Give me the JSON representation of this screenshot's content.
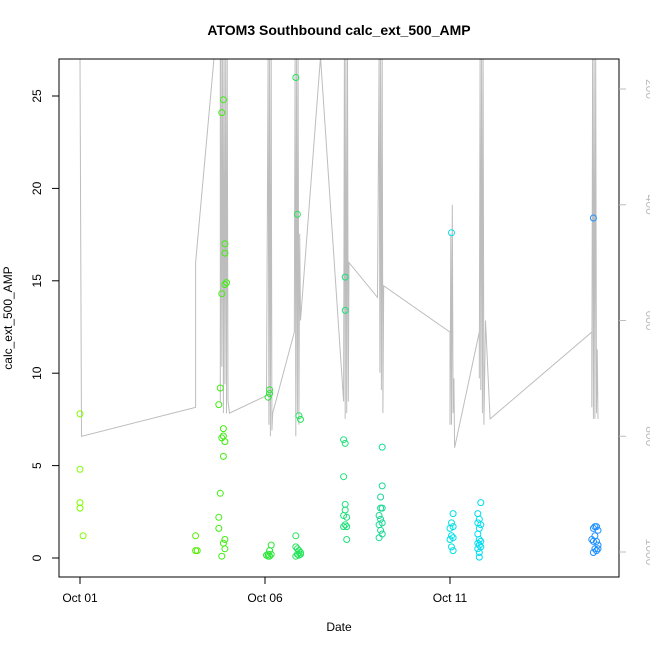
{
  "chart_data": {
    "type": "scatter",
    "title": "ATOM3 Southbound calc_ext_500_AMP",
    "xlabel": "Date",
    "ylabel": "calc_ext_500_AMP",
    "xlim": [
      "2023-10-01",
      "2023-10-15"
    ],
    "ylim": [
      0,
      27
    ],
    "y2lim": [
      1030,
      145
    ],
    "x_ticks": [
      {
        "date": "2023-10-01",
        "label": "Oct 01"
      },
      {
        "date": "2023-10-06",
        "label": "Oct 06"
      },
      {
        "date": "2023-10-11",
        "label": "Oct 11"
      }
    ],
    "y_ticks": [
      0,
      5,
      10,
      15,
      20,
      25
    ],
    "y2_ticks": [
      200,
      400,
      600,
      800,
      1000
    ],
    "grid": false,
    "legend": "none",
    "colors": {
      "trace": "#bdbdbd",
      "axis": "#000000"
    },
    "points": [
      {
        "x": "2023-10-01T00:00",
        "y": 7.8,
        "color": "#7cfc00"
      },
      {
        "x": "2023-10-01T00:00",
        "y": 4.8,
        "color": "#7cfc00"
      },
      {
        "x": "2023-10-01T00:00",
        "y": 3.0,
        "color": "#7cfc00"
      },
      {
        "x": "2023-10-01T00:00",
        "y": 2.7,
        "color": "#7cfc00"
      },
      {
        "x": "2023-10-01T02:00",
        "y": 1.2,
        "color": "#7cfc00"
      },
      {
        "x": "2023-10-04T03:00",
        "y": 1.2,
        "color": "#55f000"
      },
      {
        "x": "2023-10-04T03:00",
        "y": 0.4,
        "color": "#55f000"
      },
      {
        "x": "2023-10-04T04:00",
        "y": 0.4,
        "color": "#55f000"
      },
      {
        "x": "2023-10-04T19:00",
        "y": 9.2,
        "color": "#40ee10"
      },
      {
        "x": "2023-10-04T18:00",
        "y": 8.3,
        "color": "#40ee10"
      },
      {
        "x": "2023-10-04T21:00",
        "y": 24.8,
        "color": "#40ee10"
      },
      {
        "x": "2023-10-04T20:00",
        "y": 24.1,
        "color": "#40ee10"
      },
      {
        "x": "2023-10-04T22:00",
        "y": 17.0,
        "color": "#40ee10"
      },
      {
        "x": "2023-10-04T22:00",
        "y": 16.5,
        "color": "#40ee10"
      },
      {
        "x": "2023-10-04T23:00",
        "y": 14.9,
        "color": "#40ee10"
      },
      {
        "x": "2023-10-04T22:00",
        "y": 14.8,
        "color": "#40ee10"
      },
      {
        "x": "2023-10-04T20:00",
        "y": 14.3,
        "color": "#40ee10"
      },
      {
        "x": "2023-10-04T21:00",
        "y": 7.0,
        "color": "#40ee10"
      },
      {
        "x": "2023-10-04T20:00",
        "y": 6.5,
        "color": "#40ee10"
      },
      {
        "x": "2023-10-04T22:00",
        "y": 6.3,
        "color": "#40ee10"
      },
      {
        "x": "2023-10-04T21:00",
        "y": 6.6,
        "color": "#40ee10"
      },
      {
        "x": "2023-10-04T21:00",
        "y": 5.5,
        "color": "#40ee10"
      },
      {
        "x": "2023-10-04T19:00",
        "y": 3.5,
        "color": "#40ee10"
      },
      {
        "x": "2023-10-04T18:00",
        "y": 2.2,
        "color": "#40ee10"
      },
      {
        "x": "2023-10-04T18:00",
        "y": 1.6,
        "color": "#40ee10"
      },
      {
        "x": "2023-10-04T22:00",
        "y": 1.0,
        "color": "#40ee10"
      },
      {
        "x": "2023-10-04T21:00",
        "y": 0.8,
        "color": "#40ee10"
      },
      {
        "x": "2023-10-04T22:00",
        "y": 0.5,
        "color": "#40ee10"
      },
      {
        "x": "2023-10-04T20:00",
        "y": 0.1,
        "color": "#40ee10"
      },
      {
        "x": "2023-10-06T03:00",
        "y": 9.1,
        "color": "#2ee63a"
      },
      {
        "x": "2023-10-06T03:00",
        "y": 8.9,
        "color": "#2ee63a"
      },
      {
        "x": "2023-10-06T02:00",
        "y": 8.7,
        "color": "#2ee63a"
      },
      {
        "x": "2023-10-06T04:00",
        "y": 0.7,
        "color": "#2ee63a"
      },
      {
        "x": "2023-10-06T03:00",
        "y": 0.4,
        "color": "#2ee63a"
      },
      {
        "x": "2023-10-06T02:00",
        "y": 0.2,
        "color": "#2ee63a"
      },
      {
        "x": "2023-10-06T01:00",
        "y": 0.15,
        "color": "#2ee63a"
      },
      {
        "x": "2023-10-06T03:00",
        "y": 0.1,
        "color": "#2ee63a"
      },
      {
        "x": "2023-10-06T02:00",
        "y": 0.1,
        "color": "#2ee63a"
      },
      {
        "x": "2023-10-06T04:00",
        "y": 0.2,
        "color": "#2ee63a"
      },
      {
        "x": "2023-10-06T20:00",
        "y": 26.0,
        "color": "#22e45a"
      },
      {
        "x": "2023-10-06T21:00",
        "y": 18.6,
        "color": "#22e45a"
      },
      {
        "x": "2023-10-06T22:00",
        "y": 7.7,
        "color": "#22e45a"
      },
      {
        "x": "2023-10-06T23:00",
        "y": 7.5,
        "color": "#22e45a"
      },
      {
        "x": "2023-10-06T20:00",
        "y": 1.2,
        "color": "#22e45a"
      },
      {
        "x": "2023-10-06T20:00",
        "y": 0.6,
        "color": "#22e45a"
      },
      {
        "x": "2023-10-06T21:00",
        "y": 0.5,
        "color": "#22e45a"
      },
      {
        "x": "2023-10-06T22:00",
        "y": 0.4,
        "color": "#22e45a"
      },
      {
        "x": "2023-10-06T23:00",
        "y": 0.3,
        "color": "#22e45a"
      },
      {
        "x": "2023-10-06T21:00",
        "y": 0.2,
        "color": "#22e45a"
      },
      {
        "x": "2023-10-06T22:00",
        "y": 0.15,
        "color": "#22e45a"
      },
      {
        "x": "2023-10-06T20:00",
        "y": 0.1,
        "color": "#22e45a"
      },
      {
        "x": "2023-10-06T23:00",
        "y": 0.2,
        "color": "#22e45a"
      },
      {
        "x": "2023-10-08T04:00",
        "y": 15.2,
        "color": "#1de07a"
      },
      {
        "x": "2023-10-08T04:00",
        "y": 13.4,
        "color": "#1de07a"
      },
      {
        "x": "2023-10-08T03:00",
        "y": 6.4,
        "color": "#1de07a"
      },
      {
        "x": "2023-10-08T04:00",
        "y": 6.2,
        "color": "#1de07a"
      },
      {
        "x": "2023-10-08T03:00",
        "y": 4.4,
        "color": "#1de07a"
      },
      {
        "x": "2023-10-08T04:00",
        "y": 2.9,
        "color": "#1de07a"
      },
      {
        "x": "2023-10-08T04:00",
        "y": 2.6,
        "color": "#1de07a"
      },
      {
        "x": "2023-10-08T03:00",
        "y": 2.3,
        "color": "#1de07a"
      },
      {
        "x": "2023-10-08T05:00",
        "y": 2.2,
        "color": "#1de07a"
      },
      {
        "x": "2023-10-08T04:00",
        "y": 1.8,
        "color": "#1de07a"
      },
      {
        "x": "2023-10-08T03:00",
        "y": 1.7,
        "color": "#1de07a"
      },
      {
        "x": "2023-10-08T05:00",
        "y": 1.7,
        "color": "#1de07a"
      },
      {
        "x": "2023-10-08T05:00",
        "y": 1.0,
        "color": "#1de07a"
      },
      {
        "x": "2023-10-09T04:00",
        "y": 6.0,
        "color": "#1ad894"
      },
      {
        "x": "2023-10-09T04:00",
        "y": 3.9,
        "color": "#1ad894"
      },
      {
        "x": "2023-10-09T03:00",
        "y": 3.3,
        "color": "#1ad894"
      },
      {
        "x": "2023-10-09T03:00",
        "y": 2.7,
        "color": "#1ad894"
      },
      {
        "x": "2023-10-09T04:00",
        "y": 2.7,
        "color": "#1ad894"
      },
      {
        "x": "2023-10-09T02:00",
        "y": 2.3,
        "color": "#1ad894"
      },
      {
        "x": "2023-10-09T03:00",
        "y": 2.1,
        "color": "#1ad894"
      },
      {
        "x": "2023-10-09T04:00",
        "y": 1.9,
        "color": "#1ad894"
      },
      {
        "x": "2023-10-09T02:00",
        "y": 1.8,
        "color": "#1ad894"
      },
      {
        "x": "2023-10-09T03:00",
        "y": 1.5,
        "color": "#1ad894"
      },
      {
        "x": "2023-10-09T04:00",
        "y": 1.3,
        "color": "#1ad894"
      },
      {
        "x": "2023-10-09T02:00",
        "y": 1.1,
        "color": "#1ad894"
      },
      {
        "x": "2023-10-11T01:00",
        "y": 17.6,
        "color": "#00e0e8"
      },
      {
        "x": "2023-10-11T02:00",
        "y": 2.4,
        "color": "#00e0e8"
      },
      {
        "x": "2023-10-11T01:00",
        "y": 1.9,
        "color": "#00e0e8"
      },
      {
        "x": "2023-10-11T02:00",
        "y": 1.7,
        "color": "#00e0e8"
      },
      {
        "x": "2023-10-11T00:00",
        "y": 1.6,
        "color": "#00e0e8"
      },
      {
        "x": "2023-10-11T01:00",
        "y": 1.2,
        "color": "#00e0e8"
      },
      {
        "x": "2023-10-11T02:00",
        "y": 1.1,
        "color": "#00e0e8"
      },
      {
        "x": "2023-10-11T00:00",
        "y": 1.0,
        "color": "#00e0e8"
      },
      {
        "x": "2023-10-11T01:00",
        "y": 0.6,
        "color": "#00e0e8"
      },
      {
        "x": "2023-10-11T02:00",
        "y": 0.4,
        "color": "#00e0e8"
      },
      {
        "x": "2023-10-11T20:00",
        "y": 3.0,
        "color": "#00dcf2"
      },
      {
        "x": "2023-10-11T18:00",
        "y": 2.4,
        "color": "#00dcf2"
      },
      {
        "x": "2023-10-11T19:00",
        "y": 2.1,
        "color": "#00dcf2"
      },
      {
        "x": "2023-10-11T18:00",
        "y": 1.9,
        "color": "#00dcf2"
      },
      {
        "x": "2023-10-11T20:00",
        "y": 1.8,
        "color": "#00dcf2"
      },
      {
        "x": "2023-10-11T19:00",
        "y": 1.6,
        "color": "#00dcf2"
      },
      {
        "x": "2023-10-11T18:00",
        "y": 1.3,
        "color": "#00dcf2"
      },
      {
        "x": "2023-10-11T19:00",
        "y": 1.0,
        "color": "#00dcf2"
      },
      {
        "x": "2023-10-11T20:00",
        "y": 0.9,
        "color": "#00dcf2"
      },
      {
        "x": "2023-10-11T18:00",
        "y": 0.8,
        "color": "#00dcf2"
      },
      {
        "x": "2023-10-11T19:00",
        "y": 0.7,
        "color": "#00dcf2"
      },
      {
        "x": "2023-10-11T20:00",
        "y": 0.6,
        "color": "#00dcf2"
      },
      {
        "x": "2023-10-11T18:00",
        "y": 0.5,
        "color": "#00dcf2"
      },
      {
        "x": "2023-10-11T19:00",
        "y": 0.3,
        "color": "#00dcf2"
      },
      {
        "x": "2023-10-11T19:00",
        "y": 0.05,
        "color": "#00dcf2"
      },
      {
        "x": "2023-10-14T21:00",
        "y": 18.4,
        "color": "#1e90ff"
      },
      {
        "x": "2023-10-14T22:00",
        "y": 1.7,
        "color": "#1e90ff"
      },
      {
        "x": "2023-10-14T23:00",
        "y": 1.7,
        "color": "#1e90ff"
      },
      {
        "x": "2023-10-14T21:00",
        "y": 1.6,
        "color": "#1e90ff"
      },
      {
        "x": "2023-10-15T00:00",
        "y": 1.5,
        "color": "#1e90ff"
      },
      {
        "x": "2023-10-14T22:00",
        "y": 1.2,
        "color": "#1e90ff"
      },
      {
        "x": "2023-10-14T20:00",
        "y": 1.0,
        "color": "#1e90ff"
      },
      {
        "x": "2023-10-14T21:00",
        "y": 0.9,
        "color": "#1e90ff"
      },
      {
        "x": "2023-10-14T23:00",
        "y": 0.9,
        "color": "#1e90ff"
      },
      {
        "x": "2023-10-15T00:00",
        "y": 0.7,
        "color": "#1e90ff"
      },
      {
        "x": "2023-10-14T22:00",
        "y": 0.5,
        "color": "#1e90ff"
      },
      {
        "x": "2023-10-14T23:00",
        "y": 0.4,
        "color": "#1e90ff"
      },
      {
        "x": "2023-10-14T21:00",
        "y": 0.3,
        "color": "#1e90ff"
      },
      {
        "x": "2023-10-15T00:00",
        "y": 0.5,
        "color": "#1e90ff"
      }
    ],
    "trace_y2": [
      [
        "2023-10-01T00:00",
        145
      ],
      [
        "2023-10-01T01:00",
        800
      ],
      [
        "2023-10-04T03:00",
        750
      ],
      [
        "2023-10-04T03:00",
        500
      ],
      [
        "2023-10-04T15:00",
        145
      ],
      [
        "2023-10-04T19:00",
        145
      ],
      [
        "2023-10-04T19:00",
        740
      ],
      [
        "2023-10-04T19:30",
        145
      ],
      [
        "2023-10-04T20:00",
        680
      ],
      [
        "2023-10-04T20:30",
        145
      ],
      [
        "2023-10-04T21:00",
        760
      ],
      [
        "2023-10-04T21:30",
        145
      ],
      [
        "2023-10-04T22:00",
        710
      ],
      [
        "2023-10-04T22:30",
        145
      ],
      [
        "2023-10-04T23:00",
        760
      ],
      [
        "2023-10-04T23:30",
        145
      ],
      [
        "2023-10-05T00:00",
        740
      ],
      [
        "2023-10-05T01:00",
        760
      ],
      [
        "2023-10-06T01:00",
        730
      ],
      [
        "2023-10-06T02:00",
        145
      ],
      [
        "2023-10-06T02:30",
        780
      ],
      [
        "2023-10-06T03:00",
        145
      ],
      [
        "2023-10-06T03:30",
        800
      ],
      [
        "2023-10-06T04:00",
        145
      ],
      [
        "2023-10-06T04:30",
        790
      ],
      [
        "2023-10-06T05:00",
        760
      ],
      [
        "2023-10-06T19:00",
        620
      ],
      [
        "2023-10-06T19:30",
        145
      ],
      [
        "2023-10-06T20:00",
        800
      ],
      [
        "2023-10-06T20:30",
        145
      ],
      [
        "2023-10-06T21:00",
        760
      ],
      [
        "2023-10-06T21:30",
        145
      ],
      [
        "2023-10-06T22:00",
        780
      ],
      [
        "2023-10-06T22:30",
        450
      ],
      [
        "2023-10-06T23:00",
        600
      ],
      [
        "2023-10-07T12:00",
        145
      ],
      [
        "2023-10-08T03:00",
        740
      ],
      [
        "2023-10-08T03:30",
        145
      ],
      [
        "2023-10-08T04:00",
        770
      ],
      [
        "2023-10-08T04:30",
        145
      ],
      [
        "2023-10-08T05:00",
        760
      ],
      [
        "2023-10-08T05:30",
        145
      ],
      [
        "2023-10-08T06:00",
        740
      ],
      [
        "2023-10-08T06:30",
        500
      ],
      [
        "2023-10-09T01:00",
        560
      ],
      [
        "2023-10-09T02:00",
        145
      ],
      [
        "2023-10-09T02:30",
        690
      ],
      [
        "2023-10-09T03:00",
        145
      ],
      [
        "2023-10-09T03:30",
        720
      ],
      [
        "2023-10-09T04:00",
        145
      ],
      [
        "2023-10-09T04:30",
        760
      ],
      [
        "2023-10-09T05:00",
        540
      ],
      [
        "2023-10-11T00:00",
        620
      ],
      [
        "2023-10-11T00:00",
        780
      ],
      [
        "2023-10-11T00:30",
        450
      ],
      [
        "2023-10-11T01:00",
        780
      ],
      [
        "2023-10-11T01:30",
        400
      ],
      [
        "2023-10-11T02:00",
        760
      ],
      [
        "2023-10-11T02:30",
        700
      ],
      [
        "2023-10-11T03:00",
        820
      ],
      [
        "2023-10-11T19:00",
        620
      ],
      [
        "2023-10-11T19:00",
        700
      ],
      [
        "2023-10-11T19:30",
        145
      ],
      [
        "2023-10-11T20:00",
        720
      ],
      [
        "2023-10-11T20:30",
        145
      ],
      [
        "2023-10-11T21:00",
        760
      ],
      [
        "2023-10-11T21:30",
        145
      ],
      [
        "2023-10-11T22:00",
        780
      ],
      [
        "2023-10-11T23:00",
        600
      ],
      [
        "2023-10-12T02:00",
        770
      ],
      [
        "2023-10-14T20:00",
        620
      ],
      [
        "2023-10-14T20:00",
        750
      ],
      [
        "2023-10-14T20:30",
        145
      ],
      [
        "2023-10-14T21:00",
        770
      ],
      [
        "2023-10-14T21:30",
        145
      ],
      [
        "2023-10-14T22:00",
        770
      ],
      [
        "2023-10-14T22:30",
        145
      ],
      [
        "2023-10-14T23:00",
        760
      ],
      [
        "2023-10-14T23:30",
        650
      ],
      [
        "2023-10-15T00:00",
        770
      ]
    ]
  }
}
